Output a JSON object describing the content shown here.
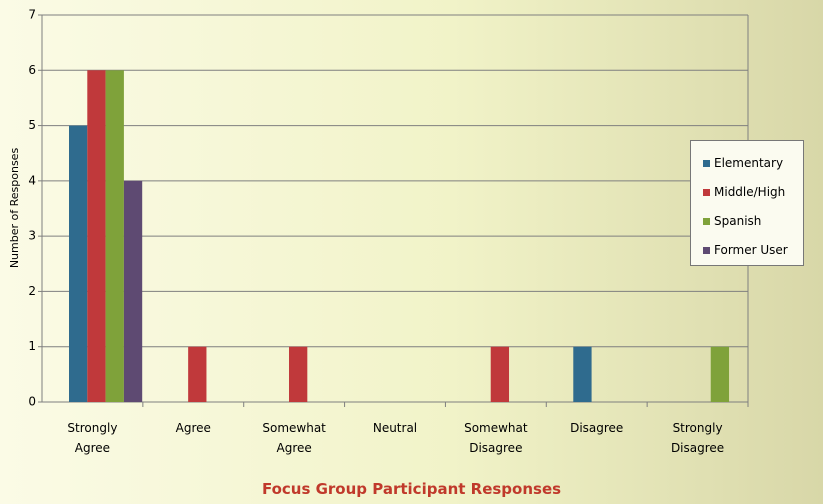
{
  "chart_data": {
    "type": "bar",
    "title": "Focus Group Participant Responses",
    "ylabel": "Number of Responses",
    "categories": [
      "Strongly Agree",
      "Agree",
      "Somewhat Agree",
      "Neutral",
      "Somewhat Disagree",
      "Disagree",
      "Strongly Disagree"
    ],
    "series": [
      {
        "name": "Elementary",
        "color": "#2f6b8e",
        "values": [
          5,
          0,
          0,
          0,
          0,
          1,
          0
        ]
      },
      {
        "name": "Middle/High",
        "color": "#c0393b",
        "values": [
          6,
          1,
          1,
          0,
          1,
          0,
          0
        ]
      },
      {
        "name": "Spanish",
        "color": "#7fa23a",
        "values": [
          6,
          0,
          0,
          0,
          0,
          0,
          1
        ]
      },
      {
        "name": "Former User",
        "color": "#5e4a72",
        "values": [
          4,
          0,
          0,
          0,
          0,
          0,
          0
        ]
      }
    ],
    "ylim": [
      0,
      7
    ],
    "yticks": [
      0,
      1,
      2,
      3,
      4,
      5,
      6,
      7
    ],
    "grid": true,
    "legend": "right"
  }
}
